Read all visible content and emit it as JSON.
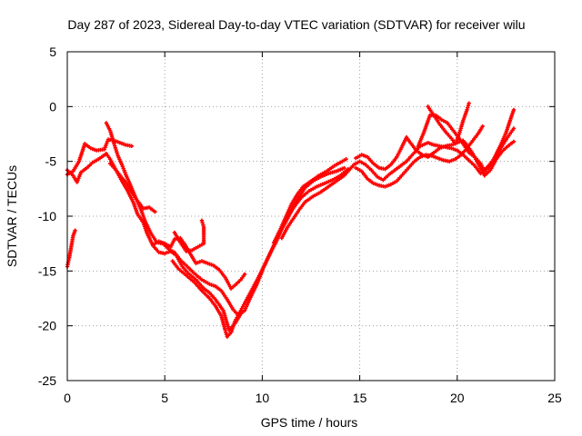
{
  "chart_data": {
    "type": "scatter",
    "title": "Day 287 of 2023, Sidereal Day-to-day VTEC variation (SDTVAR) for receiver wilu",
    "xlabel": "GPS time / hours",
    "ylabel": "SDTVAR / TECUs",
    "xlim": [
      0,
      25
    ],
    "ylim": [
      -25,
      5
    ],
    "x_ticks": [
      0,
      5,
      10,
      15,
      20,
      25
    ],
    "y_ticks": [
      -25,
      -20,
      -15,
      -10,
      -5,
      0,
      5
    ],
    "x_tick_labels": [
      "0",
      "5",
      "10",
      "15",
      "20",
      "25"
    ],
    "y_tick_labels": [
      "-25",
      "-20",
      "-15",
      "-10",
      "-5",
      "0",
      "5"
    ],
    "grid": true,
    "marker": "plus",
    "colors": {
      "series": "#ff0000",
      "grid": "#a0a0a0",
      "axis": "#000000"
    },
    "series": [
      {
        "points": [
          [
            0.0,
            -14.6
          ],
          [
            0.1,
            -13.8
          ],
          [
            0.2,
            -12.8
          ],
          [
            0.3,
            -11.8
          ],
          [
            0.4,
            -11.3
          ],
          [
            0.0,
            -6.2
          ],
          [
            0.3,
            -5.9
          ],
          [
            0.6,
            -5.0
          ],
          [
            0.9,
            -3.4
          ],
          [
            1.2,
            -3.8
          ],
          [
            1.5,
            -4.0
          ],
          [
            1.9,
            -3.9
          ],
          [
            2.1,
            -3.0
          ],
          [
            2.4,
            -3.1
          ],
          [
            2.7,
            -3.3
          ],
          [
            3.0,
            -3.5
          ],
          [
            3.3,
            -3.6
          ],
          [
            0.0,
            -5.8
          ],
          [
            0.3,
            -6.3
          ],
          [
            0.5,
            -6.9
          ],
          [
            0.7,
            -6.0
          ],
          [
            1.0,
            -5.6
          ],
          [
            1.3,
            -5.1
          ],
          [
            1.6,
            -4.8
          ],
          [
            2.0,
            -4.3
          ],
          [
            2.2,
            -4.8
          ],
          [
            2.5,
            -5.8
          ],
          [
            2.8,
            -6.5
          ],
          [
            3.0,
            -6.9
          ],
          [
            3.3,
            -7.8
          ],
          [
            3.6,
            -8.6
          ],
          [
            3.9,
            -9.3
          ],
          [
            4.2,
            -9.2
          ],
          [
            4.5,
            -9.6
          ],
          [
            2.0,
            -1.5
          ],
          [
            2.2,
            -2.2
          ],
          [
            2.4,
            -3.4
          ],
          [
            2.6,
            -4.5
          ],
          [
            2.8,
            -5.3
          ],
          [
            3.0,
            -6.2
          ],
          [
            3.2,
            -7.0
          ],
          [
            3.5,
            -8.3
          ],
          [
            3.8,
            -9.5
          ],
          [
            4.0,
            -10.5
          ],
          [
            4.3,
            -11.6
          ],
          [
            4.6,
            -12.4
          ],
          [
            4.9,
            -12.5
          ],
          [
            5.2,
            -13.0
          ],
          [
            5.5,
            -13.3
          ],
          [
            5.8,
            -14.0
          ],
          [
            6.1,
            -14.5
          ],
          [
            6.5,
            -15.2
          ],
          [
            6.9,
            -15.8
          ],
          [
            7.3,
            -16.2
          ],
          [
            7.6,
            -16.4
          ],
          [
            7.9,
            -16.8
          ],
          [
            8.2,
            -17.6
          ],
          [
            8.5,
            -18.5
          ],
          [
            8.8,
            -19.1
          ],
          [
            2.2,
            -5.2
          ],
          [
            2.5,
            -5.8
          ],
          [
            2.8,
            -6.8
          ],
          [
            3.1,
            -7.7
          ],
          [
            3.4,
            -8.8
          ],
          [
            3.6,
            -9.8
          ],
          [
            3.9,
            -10.6
          ],
          [
            4.1,
            -11.6
          ],
          [
            4.4,
            -12.7
          ],
          [
            4.7,
            -13.3
          ],
          [
            5.0,
            -13.4
          ],
          [
            5.3,
            -13.2
          ],
          [
            5.6,
            -13.6
          ],
          [
            5.9,
            -14.6
          ],
          [
            6.2,
            -15.2
          ],
          [
            6.6,
            -15.8
          ],
          [
            7.0,
            -16.6
          ],
          [
            7.3,
            -17.0
          ],
          [
            7.6,
            -17.6
          ],
          [
            8.0,
            -18.6
          ],
          [
            8.3,
            -20.4
          ],
          [
            8.6,
            -19.8
          ],
          [
            8.9,
            -18.9
          ],
          [
            9.1,
            -18.6
          ],
          [
            9.4,
            -17.4
          ],
          [
            9.7,
            -16.3
          ],
          [
            10.0,
            -15.0
          ],
          [
            4.4,
            -12.6
          ],
          [
            4.7,
            -12.3
          ],
          [
            5.0,
            -12.5
          ],
          [
            5.3,
            -12.8
          ],
          [
            5.5,
            -12.1
          ],
          [
            5.8,
            -12.0
          ],
          [
            6.0,
            -12.5
          ],
          [
            6.3,
            -13.4
          ],
          [
            6.6,
            -14.3
          ],
          [
            6.9,
            -14.1
          ],
          [
            7.2,
            -14.3
          ],
          [
            7.5,
            -14.5
          ],
          [
            7.8,
            -14.9
          ],
          [
            8.1,
            -15.6
          ],
          [
            8.4,
            -16.6
          ],
          [
            8.6,
            -16.3
          ],
          [
            8.9,
            -15.8
          ],
          [
            9.1,
            -15.3
          ],
          [
            5.5,
            -11.5
          ],
          [
            5.8,
            -12.4
          ],
          [
            6.1,
            -13.2
          ],
          [
            6.4,
            -13.1
          ],
          [
            6.7,
            -12.8
          ],
          [
            7.0,
            -12.5
          ],
          [
            7.0,
            -11.0
          ],
          [
            6.9,
            -10.4
          ],
          [
            5.4,
            -14.1
          ],
          [
            5.7,
            -14.8
          ],
          [
            6.1,
            -15.4
          ],
          [
            6.5,
            -16.0
          ],
          [
            6.9,
            -16.8
          ],
          [
            7.3,
            -17.5
          ],
          [
            7.6,
            -18.2
          ],
          [
            7.9,
            -19.1
          ],
          [
            8.1,
            -20.4
          ],
          [
            8.2,
            -21.0
          ],
          [
            8.4,
            -20.6
          ],
          [
            8.6,
            -19.6
          ],
          [
            8.9,
            -18.6
          ],
          [
            9.2,
            -17.6
          ],
          [
            9.5,
            -16.6
          ],
          [
            9.8,
            -15.6
          ],
          [
            10.1,
            -14.5
          ],
          [
            10.4,
            -13.4
          ],
          [
            10.7,
            -12.4
          ],
          [
            11.0,
            -11.2
          ],
          [
            11.3,
            -10.2
          ],
          [
            11.6,
            -9.1
          ],
          [
            11.9,
            -8.2
          ],
          [
            12.2,
            -7.4
          ],
          [
            12.6,
            -6.8
          ],
          [
            13.0,
            -6.4
          ],
          [
            13.4,
            -6.1
          ],
          [
            13.8,
            -5.9
          ],
          [
            14.2,
            -5.6
          ],
          [
            9.3,
            -17.6
          ],
          [
            9.6,
            -16.4
          ],
          [
            9.9,
            -15.3
          ],
          [
            10.2,
            -14.2
          ],
          [
            10.5,
            -13.0
          ],
          [
            10.8,
            -11.8
          ],
          [
            11.1,
            -10.8
          ],
          [
            11.4,
            -9.8
          ],
          [
            11.7,
            -9.0
          ],
          [
            12.0,
            -8.3
          ],
          [
            12.4,
            -7.7
          ],
          [
            12.8,
            -7.3
          ],
          [
            13.2,
            -7.0
          ],
          [
            13.6,
            -6.7
          ],
          [
            14.0,
            -6.3
          ],
          [
            14.4,
            -5.7
          ],
          [
            10.6,
            -12.4
          ],
          [
            10.9,
            -11.3
          ],
          [
            11.2,
            -10.1
          ],
          [
            11.5,
            -8.9
          ],
          [
            11.8,
            -8.0
          ],
          [
            12.1,
            -7.3
          ],
          [
            12.5,
            -6.8
          ],
          [
            12.9,
            -6.3
          ],
          [
            13.3,
            -5.9
          ],
          [
            13.7,
            -5.4
          ],
          [
            14.1,
            -5.0
          ],
          [
            14.3,
            -4.8
          ],
          [
            11.0,
            -12.0
          ],
          [
            11.3,
            -11.0
          ],
          [
            11.6,
            -10.2
          ],
          [
            11.9,
            -9.4
          ],
          [
            12.2,
            -8.7
          ],
          [
            12.6,
            -8.2
          ],
          [
            13.0,
            -7.8
          ],
          [
            13.4,
            -7.3
          ],
          [
            13.8,
            -6.8
          ],
          [
            14.2,
            -6.3
          ],
          [
            14.7,
            -5.3
          ],
          [
            15.0,
            -5.0
          ],
          [
            15.3,
            -5.3
          ],
          [
            15.6,
            -5.8
          ],
          [
            15.9,
            -6.4
          ],
          [
            16.2,
            -6.7
          ],
          [
            16.5,
            -6.2
          ],
          [
            16.8,
            -5.8
          ],
          [
            17.1,
            -5.4
          ],
          [
            17.4,
            -5.0
          ],
          [
            17.8,
            -4.2
          ],
          [
            18.1,
            -3.6
          ],
          [
            18.5,
            -3.3
          ],
          [
            18.8,
            -3.5
          ],
          [
            19.1,
            -3.6
          ],
          [
            19.4,
            -3.7
          ],
          [
            19.7,
            -3.8
          ],
          [
            20.0,
            -4.0
          ],
          [
            20.3,
            -4.4
          ],
          [
            20.6,
            -4.9
          ],
          [
            20.9,
            -5.4
          ],
          [
            21.2,
            -6.1
          ],
          [
            21.5,
            -5.6
          ],
          [
            21.8,
            -5.0
          ],
          [
            22.1,
            -4.2
          ],
          [
            22.4,
            -3.3
          ],
          [
            22.7,
            -2.5
          ],
          [
            22.9,
            -2.0
          ],
          [
            14.8,
            -5.6
          ],
          [
            15.1,
            -5.9
          ],
          [
            15.4,
            -6.6
          ],
          [
            15.7,
            -7.0
          ],
          [
            16.0,
            -7.2
          ],
          [
            16.3,
            -7.3
          ],
          [
            16.6,
            -7.1
          ],
          [
            16.9,
            -6.8
          ],
          [
            17.2,
            -6.2
          ],
          [
            17.5,
            -5.6
          ],
          [
            17.8,
            -5.0
          ],
          [
            18.1,
            -4.6
          ],
          [
            18.4,
            -4.4
          ],
          [
            18.7,
            -4.5
          ],
          [
            19.0,
            -4.7
          ],
          [
            19.3,
            -4.9
          ],
          [
            19.6,
            -5.0
          ],
          [
            19.9,
            -4.8
          ],
          [
            20.2,
            -4.4
          ],
          [
            20.5,
            -3.8
          ],
          [
            20.8,
            -3.1
          ],
          [
            21.1,
            -2.4
          ],
          [
            21.3,
            -1.8
          ],
          [
            14.8,
            -4.7
          ],
          [
            15.1,
            -4.4
          ],
          [
            15.4,
            -4.6
          ],
          [
            15.7,
            -5.2
          ],
          [
            16.0,
            -5.6
          ],
          [
            16.3,
            -5.7
          ],
          [
            16.6,
            -5.3
          ],
          [
            16.9,
            -4.6
          ],
          [
            17.1,
            -3.9
          ],
          [
            17.4,
            -2.8
          ],
          [
            17.6,
            -3.3
          ],
          [
            17.9,
            -4.0
          ],
          [
            18.2,
            -4.4
          ],
          [
            18.5,
            -4.6
          ],
          [
            18.8,
            -4.2
          ],
          [
            19.1,
            -3.8
          ],
          [
            19.4,
            -3.6
          ],
          [
            19.7,
            -3.5
          ],
          [
            20.0,
            -3.3
          ],
          [
            20.3,
            -3.1
          ],
          [
            20.5,
            -3.5
          ],
          [
            20.8,
            -4.3
          ],
          [
            21.1,
            -5.3
          ],
          [
            21.4,
            -6.3
          ],
          [
            21.7,
            -5.8
          ],
          [
            22.0,
            -4.8
          ],
          [
            22.3,
            -4.1
          ],
          [
            22.6,
            -3.6
          ],
          [
            22.9,
            -3.2
          ],
          [
            18.0,
            -3.6
          ],
          [
            18.3,
            -2.3
          ],
          [
            18.6,
            -0.8
          ],
          [
            18.9,
            -0.8
          ],
          [
            19.2,
            -1.2
          ],
          [
            19.5,
            -1.5
          ],
          [
            19.8,
            -2.2
          ],
          [
            20.1,
            -2.9
          ],
          [
            20.3,
            -3.4
          ],
          [
            20.6,
            -4.2
          ],
          [
            20.9,
            -4.6
          ],
          [
            21.2,
            -5.2
          ],
          [
            21.4,
            -5.9
          ],
          [
            21.6,
            -5.6
          ],
          [
            21.9,
            -4.7
          ],
          [
            22.2,
            -3.6
          ],
          [
            22.5,
            -2.4
          ],
          [
            22.8,
            -0.8
          ],
          [
            22.9,
            -0.3
          ],
          [
            18.5,
            0.0
          ],
          [
            18.8,
            -0.8
          ],
          [
            19.1,
            -1.6
          ],
          [
            19.4,
            -2.3
          ],
          [
            19.7,
            -2.9
          ],
          [
            19.9,
            -3.4
          ],
          [
            20.1,
            -2.5
          ],
          [
            20.3,
            -1.3
          ],
          [
            20.5,
            -0.3
          ],
          [
            20.6,
            0.3
          ]
        ]
      }
    ]
  }
}
